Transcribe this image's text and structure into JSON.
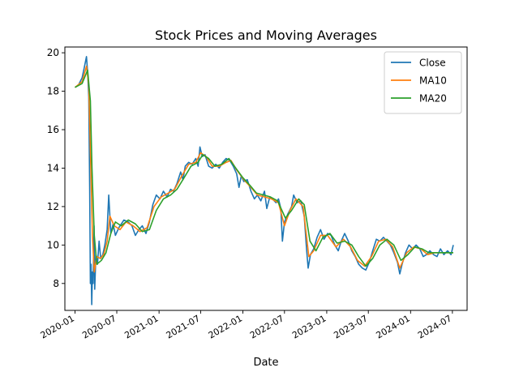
{
  "chart_data": {
    "type": "line",
    "title": "Stock Prices and Moving Averages",
    "xlabel": "Date",
    "ylabel": "",
    "x_type": "date",
    "xlim": [
      "2019-11-18",
      "2024-09-03"
    ],
    "ylim": [
      6.6,
      20.3
    ],
    "x_ticks": [
      "2020-01-01",
      "2020-07-01",
      "2021-01-01",
      "2021-07-01",
      "2022-01-01",
      "2022-07-01",
      "2023-01-01",
      "2023-07-01",
      "2024-01-01",
      "2024-07-01"
    ],
    "x_tick_labels": [
      "2020-01",
      "2020-07",
      "2021-01",
      "2021-07",
      "2022-01",
      "2022-07",
      "2023-01",
      "2023-07",
      "2024-01",
      "2024-07"
    ],
    "y_ticks": [
      8,
      10,
      12,
      14,
      16,
      18,
      20
    ],
    "y_tick_labels": [
      "8",
      "10",
      "12",
      "14",
      "16",
      "18",
      "20"
    ],
    "grid": false,
    "legend": {
      "position": "top-right",
      "entries": [
        "Close",
        "MA10",
        "MA20"
      ]
    },
    "series": [
      {
        "name": "Close",
        "color": "#1f77b4",
        "points": [
          [
            "2020-01-01",
            18.2
          ],
          [
            "2020-01-15",
            18.3
          ],
          [
            "2020-02-01",
            18.7
          ],
          [
            "2020-02-10",
            19.2
          ],
          [
            "2020-02-20",
            19.8
          ],
          [
            "2020-02-25",
            19.0
          ],
          [
            "2020-03-01",
            17.7
          ],
          [
            "2020-03-05",
            12.9
          ],
          [
            "2020-03-08",
            8.0
          ],
          [
            "2020-03-11",
            9.0
          ],
          [
            "2020-03-14",
            6.9
          ],
          [
            "2020-03-17",
            8.6
          ],
          [
            "2020-03-20",
            8.0
          ],
          [
            "2020-03-24",
            11.0
          ],
          [
            "2020-03-27",
            7.7
          ],
          [
            "2020-04-01",
            9.5
          ],
          [
            "2020-04-08",
            9.0
          ],
          [
            "2020-04-15",
            10.2
          ],
          [
            "2020-04-22",
            9.3
          ],
          [
            "2020-05-01",
            9.5
          ],
          [
            "2020-05-10",
            10.0
          ],
          [
            "2020-05-20",
            10.8
          ],
          [
            "2020-05-27",
            12.6
          ],
          [
            "2020-06-05",
            10.6
          ],
          [
            "2020-06-15",
            11.1
          ],
          [
            "2020-06-25",
            10.5
          ],
          [
            "2020-07-10",
            10.9
          ],
          [
            "2020-08-01",
            11.3
          ],
          [
            "2020-08-20",
            11.2
          ],
          [
            "2020-09-05",
            11.0
          ],
          [
            "2020-09-20",
            10.5
          ],
          [
            "2020-10-05",
            10.8
          ],
          [
            "2020-10-20",
            11.0
          ],
          [
            "2020-11-05",
            10.6
          ],
          [
            "2020-11-20",
            11.2
          ],
          [
            "2020-12-05",
            12.1
          ],
          [
            "2020-12-20",
            12.6
          ],
          [
            "2021-01-05",
            12.4
          ],
          [
            "2021-01-20",
            12.8
          ],
          [
            "2021-02-05",
            12.5
          ],
          [
            "2021-02-20",
            12.9
          ],
          [
            "2021-03-05",
            12.8
          ],
          [
            "2021-03-20",
            13.2
          ],
          [
            "2021-04-05",
            13.8
          ],
          [
            "2021-04-15",
            13.4
          ],
          [
            "2021-04-25",
            14.1
          ],
          [
            "2021-05-10",
            14.3
          ],
          [
            "2021-05-25",
            14.2
          ],
          [
            "2021-06-10",
            14.5
          ],
          [
            "2021-06-20",
            14.1
          ],
          [
            "2021-06-28",
            15.1
          ],
          [
            "2021-07-08",
            14.6
          ],
          [
            "2021-07-20",
            14.7
          ],
          [
            "2021-08-05",
            14.1
          ],
          [
            "2021-08-20",
            14.0
          ],
          [
            "2021-09-05",
            14.2
          ],
          [
            "2021-09-20",
            14.0
          ],
          [
            "2021-10-05",
            14.3
          ],
          [
            "2021-10-20",
            14.5
          ],
          [
            "2021-11-05",
            14.4
          ],
          [
            "2021-11-20",
            14.1
          ],
          [
            "2021-12-05",
            13.7
          ],
          [
            "2021-12-15",
            13.0
          ],
          [
            "2021-12-25",
            13.6
          ],
          [
            "2022-01-05",
            13.3
          ],
          [
            "2022-01-20",
            13.4
          ],
          [
            "2022-02-05",
            12.8
          ],
          [
            "2022-02-20",
            12.4
          ],
          [
            "2022-03-05",
            12.6
          ],
          [
            "2022-03-20",
            12.3
          ],
          [
            "2022-04-05",
            12.8
          ],
          [
            "2022-04-15",
            11.9
          ],
          [
            "2022-04-28",
            12.5
          ],
          [
            "2022-05-10",
            12.4
          ],
          [
            "2022-05-25",
            12.2
          ],
          [
            "2022-06-05",
            12.4
          ],
          [
            "2022-06-15",
            11.9
          ],
          [
            "2022-06-22",
            10.2
          ],
          [
            "2022-07-01",
            11.2
          ],
          [
            "2022-07-15",
            11.6
          ],
          [
            "2022-08-01",
            12.0
          ],
          [
            "2022-08-10",
            12.6
          ],
          [
            "2022-08-25",
            12.2
          ],
          [
            "2022-09-10",
            12.3
          ],
          [
            "2022-09-25",
            11.5
          ],
          [
            "2022-10-05",
            9.8
          ],
          [
            "2022-10-12",
            8.8
          ],
          [
            "2022-10-22",
            9.5
          ],
          [
            "2022-11-05",
            9.8
          ],
          [
            "2022-11-20",
            10.4
          ],
          [
            "2022-12-05",
            10.8
          ],
          [
            "2022-12-20",
            10.3
          ],
          [
            "2023-01-05",
            10.6
          ],
          [
            "2023-01-20",
            10.5
          ],
          [
            "2023-02-05",
            10.0
          ],
          [
            "2023-02-20",
            9.7
          ],
          [
            "2023-03-05",
            10.2
          ],
          [
            "2023-03-20",
            10.6
          ],
          [
            "2023-04-05",
            10.2
          ],
          [
            "2023-04-20",
            9.7
          ],
          [
            "2023-05-05",
            9.4
          ],
          [
            "2023-05-20",
            9.0
          ],
          [
            "2023-06-05",
            8.8
          ],
          [
            "2023-06-20",
            8.7
          ],
          [
            "2023-07-05",
            9.1
          ],
          [
            "2023-07-20",
            9.7
          ],
          [
            "2023-08-05",
            10.3
          ],
          [
            "2023-08-20",
            10.2
          ],
          [
            "2023-09-05",
            10.4
          ],
          [
            "2023-09-20",
            10.2
          ],
          [
            "2023-10-05",
            10.0
          ],
          [
            "2023-10-20",
            9.6
          ],
          [
            "2023-11-05",
            9.1
          ],
          [
            "2023-11-15",
            8.5
          ],
          [
            "2023-11-25",
            9.0
          ],
          [
            "2023-12-10",
            9.6
          ],
          [
            "2023-12-25",
            10.0
          ],
          [
            "2024-01-10",
            9.8
          ],
          [
            "2024-01-25",
            10.0
          ],
          [
            "2024-02-10",
            9.8
          ],
          [
            "2024-02-25",
            9.4
          ],
          [
            "2024-03-10",
            9.5
          ],
          [
            "2024-03-25",
            9.7
          ],
          [
            "2024-04-10",
            9.5
          ],
          [
            "2024-04-25",
            9.4
          ],
          [
            "2024-05-10",
            9.8
          ],
          [
            "2024-05-25",
            9.5
          ],
          [
            "2024-06-10",
            9.7
          ],
          [
            "2024-06-25",
            9.5
          ],
          [
            "2024-07-05",
            10.0
          ]
        ]
      },
      {
        "name": "MA10",
        "color": "#ff7f0e",
        "points": [
          [
            "2020-01-01",
            18.2
          ],
          [
            "2020-02-01",
            18.5
          ],
          [
            "2020-02-20",
            19.3
          ],
          [
            "2020-03-01",
            18.3
          ],
          [
            "2020-03-10",
            14.0
          ],
          [
            "2020-03-17",
            10.5
          ],
          [
            "2020-03-25",
            8.6
          ],
          [
            "2020-04-05",
            9.4
          ],
          [
            "2020-04-20",
            9.3
          ],
          [
            "2020-05-05",
            9.5
          ],
          [
            "2020-05-20",
            10.2
          ],
          [
            "2020-06-01",
            11.5
          ],
          [
            "2020-06-20",
            11.0
          ],
          [
            "2020-07-15",
            10.8
          ],
          [
            "2020-08-10",
            11.2
          ],
          [
            "2020-09-10",
            11.0
          ],
          [
            "2020-10-10",
            10.7
          ],
          [
            "2020-11-10",
            10.9
          ],
          [
            "2020-12-10",
            12.0
          ],
          [
            "2021-01-10",
            12.5
          ],
          [
            "2021-02-10",
            12.7
          ],
          [
            "2021-03-10",
            12.9
          ],
          [
            "2021-04-10",
            13.6
          ],
          [
            "2021-05-10",
            14.2
          ],
          [
            "2021-06-10",
            14.3
          ],
          [
            "2021-07-01",
            14.8
          ],
          [
            "2021-07-25",
            14.6
          ],
          [
            "2021-08-20",
            14.1
          ],
          [
            "2021-09-20",
            14.1
          ],
          [
            "2021-10-20",
            14.3
          ],
          [
            "2021-11-10",
            14.4
          ],
          [
            "2021-12-05",
            13.9
          ],
          [
            "2022-01-05",
            13.4
          ],
          [
            "2022-02-05",
            13.0
          ],
          [
            "2022-03-05",
            12.6
          ],
          [
            "2022-04-05",
            12.5
          ],
          [
            "2022-05-05",
            12.4
          ],
          [
            "2022-06-05",
            12.2
          ],
          [
            "2022-07-01",
            11.0
          ],
          [
            "2022-07-25",
            11.8
          ],
          [
            "2022-08-20",
            12.4
          ],
          [
            "2022-09-20",
            12.0
          ],
          [
            "2022-10-15",
            9.4
          ],
          [
            "2022-11-05",
            9.7
          ],
          [
            "2022-12-05",
            10.5
          ],
          [
            "2023-01-05",
            10.5
          ],
          [
            "2023-02-10",
            9.9
          ],
          [
            "2023-03-15",
            10.3
          ],
          [
            "2023-04-15",
            9.9
          ],
          [
            "2023-05-15",
            9.2
          ],
          [
            "2023-06-15",
            8.9
          ],
          [
            "2023-07-15",
            9.4
          ],
          [
            "2023-08-15",
            10.2
          ],
          [
            "2023-09-15",
            10.3
          ],
          [
            "2023-10-15",
            9.9
          ],
          [
            "2023-11-15",
            8.8
          ],
          [
            "2023-12-15",
            9.6
          ],
          [
            "2024-01-15",
            9.9
          ],
          [
            "2024-02-15",
            9.8
          ],
          [
            "2024-03-15",
            9.5
          ],
          [
            "2024-04-15",
            9.6
          ],
          [
            "2024-05-15",
            9.6
          ],
          [
            "2024-06-15",
            9.6
          ],
          [
            "2024-07-05",
            9.6
          ]
        ]
      },
      {
        "name": "MA20",
        "color": "#2ca02c",
        "points": [
          [
            "2020-01-01",
            18.2
          ],
          [
            "2020-02-01",
            18.4
          ],
          [
            "2020-02-25",
            19.1
          ],
          [
            "2020-03-08",
            17.5
          ],
          [
            "2020-03-15",
            14.0
          ],
          [
            "2020-03-25",
            10.5
          ],
          [
            "2020-04-05",
            9.0
          ],
          [
            "2020-04-25",
            9.2
          ],
          [
            "2020-05-15",
            9.6
          ],
          [
            "2020-06-05",
            10.6
          ],
          [
            "2020-06-25",
            11.2
          ],
          [
            "2020-07-20",
            11.0
          ],
          [
            "2020-08-20",
            11.3
          ],
          [
            "2020-09-20",
            11.1
          ],
          [
            "2020-10-20",
            10.7
          ],
          [
            "2020-11-20",
            10.8
          ],
          [
            "2020-12-20",
            11.8
          ],
          [
            "2021-01-20",
            12.4
          ],
          [
            "2021-02-20",
            12.6
          ],
          [
            "2021-03-20",
            12.9
          ],
          [
            "2021-04-20",
            13.5
          ],
          [
            "2021-05-20",
            14.1
          ],
          [
            "2021-06-20",
            14.3
          ],
          [
            "2021-07-10",
            14.7
          ],
          [
            "2021-08-05",
            14.5
          ],
          [
            "2021-09-01",
            14.1
          ],
          [
            "2021-10-01",
            14.2
          ],
          [
            "2021-11-01",
            14.5
          ],
          [
            "2021-12-01",
            14.0
          ],
          [
            "2022-01-01",
            13.5
          ],
          [
            "2022-02-01",
            13.1
          ],
          [
            "2022-03-01",
            12.7
          ],
          [
            "2022-04-01",
            12.6
          ],
          [
            "2022-05-01",
            12.5
          ],
          [
            "2022-06-01",
            12.3
          ],
          [
            "2022-07-05",
            11.4
          ],
          [
            "2022-08-01",
            11.8
          ],
          [
            "2022-09-01",
            12.4
          ],
          [
            "2022-09-25",
            12.1
          ],
          [
            "2022-10-20",
            10.2
          ],
          [
            "2022-11-15",
            9.7
          ],
          [
            "2022-12-15",
            10.4
          ],
          [
            "2023-01-15",
            10.6
          ],
          [
            "2023-02-15",
            10.1
          ],
          [
            "2023-03-20",
            10.2
          ],
          [
            "2023-04-20",
            10.0
          ],
          [
            "2023-05-20",
            9.4
          ],
          [
            "2023-06-20",
            8.9
          ],
          [
            "2023-07-20",
            9.3
          ],
          [
            "2023-08-20",
            10.0
          ],
          [
            "2023-09-20",
            10.3
          ],
          [
            "2023-10-20",
            10.0
          ],
          [
            "2023-11-20",
            9.2
          ],
          [
            "2023-12-20",
            9.5
          ],
          [
            "2024-01-20",
            9.9
          ],
          [
            "2024-02-20",
            9.8
          ],
          [
            "2024-03-20",
            9.6
          ],
          [
            "2024-04-20",
            9.6
          ],
          [
            "2024-05-20",
            9.6
          ],
          [
            "2024-06-20",
            9.6
          ],
          [
            "2024-07-05",
            9.6
          ]
        ]
      }
    ]
  }
}
